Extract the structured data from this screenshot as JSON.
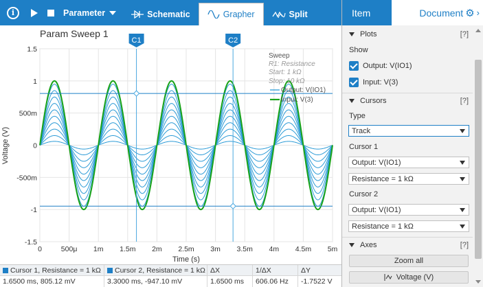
{
  "toolbar": {
    "parameter_label": "Parameter",
    "tabs": [
      {
        "label": "Schematic",
        "icon": "diode-icon",
        "active": false
      },
      {
        "label": "Grapher",
        "icon": "sine-wave-icon",
        "active": true
      },
      {
        "label": "Split",
        "icon": "split-icon",
        "active": false
      }
    ]
  },
  "plot": {
    "title": "Param Sweep 1",
    "cursor1_label": "C1",
    "cursor2_label": "C2",
    "legend": {
      "heading": "Sweep",
      "param": "R1: Resistance",
      "start": "Start: 1 kΩ",
      "stop": "Stop: 10 kΩ",
      "output_label": "Output: V(IO1)",
      "input_label": "Input: V(3)"
    },
    "colors": {
      "output": "#2a9ad6",
      "input": "#19a319",
      "cursor": "#4aa8e0",
      "accent": "#1e7fc6"
    }
  },
  "chart_data": {
    "type": "line",
    "title": "Param Sweep 1",
    "xlabel": "Time (s)",
    "ylabel": "Voltage (V)",
    "xlim": [
      0,
      0.005
    ],
    "ylim": [
      -1.5,
      1.5
    ],
    "x_tick_labels": [
      "0",
      "500μ",
      "1m",
      "1.5m",
      "2m",
      "2.5m",
      "3m",
      "3.5m",
      "4m",
      "4.5m",
      "5m"
    ],
    "y_tick_labels": [
      "1.5",
      "1",
      "500m",
      "0",
      "-500m",
      "-1",
      "-1.5"
    ],
    "frequency_hz": 1000,
    "series": [
      {
        "name": "Input: V(3)",
        "color": "#19a319",
        "amplitude": 1.0
      },
      {
        "name": "Output: V(IO1)",
        "color": "#2a9ad6",
        "amplitudes": [
          0.95,
          0.85,
          0.75,
          0.65,
          0.55,
          0.45,
          0.35,
          0.25,
          0.15,
          0.06
        ]
      }
    ],
    "cursors": [
      {
        "label": "C1",
        "x": 0.00165,
        "y": 0.80512
      },
      {
        "label": "C2",
        "x": 0.0033,
        "y": -0.9471
      }
    ]
  },
  "statusbar": {
    "headers": [
      "Cursor 1, Resistance = 1 kΩ",
      "Cursor 2, Resistance = 1 kΩ",
      "ΔX",
      "1/ΔX",
      "ΔY"
    ],
    "values": [
      "1.6500 ms, 805.12 mV",
      "3.3000 ms, -947.10 mV",
      "1.6500 ms",
      "606.06 Hz",
      "-1.7522 V"
    ]
  },
  "rpanel": {
    "tab_item": "Item",
    "tab_document": "Document",
    "plots": {
      "title": "Plots",
      "help": "[?]",
      "show_label": "Show",
      "output": "Output: V(IO1)",
      "input": "Input: V(3)"
    },
    "cursors": {
      "title": "Cursors",
      "help": "[?]",
      "type_label": "Type",
      "type_value": "Track",
      "cursor1_label": "Cursor 1",
      "cursor1_signal": "Output: V(IO1)",
      "cursor1_param": "Resistance = 1 kΩ",
      "cursor2_label": "Cursor 2",
      "cursor2_signal": "Output: V(IO1)",
      "cursor2_param": "Resistance = 1 kΩ"
    },
    "axes": {
      "title": "Axes",
      "help": "[?]",
      "zoom_all": "Zoom all",
      "voltage": "Voltage (V)"
    }
  }
}
